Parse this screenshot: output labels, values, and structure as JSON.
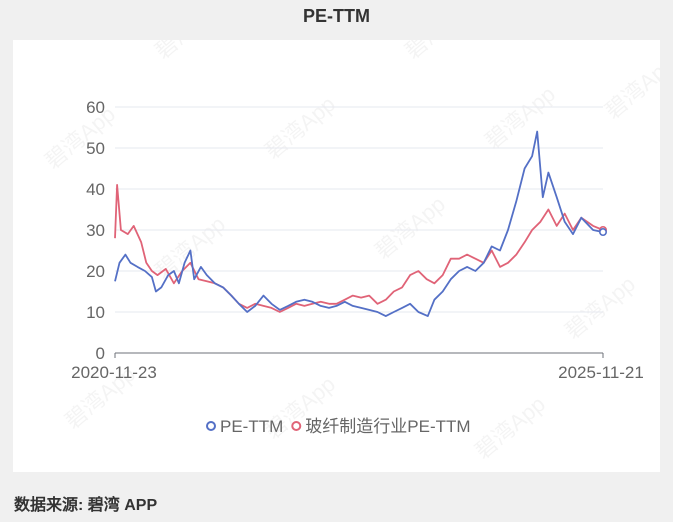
{
  "title": "PE-TTM",
  "source": "数据来源: 碧湾 APP",
  "watermark": "碧湾App",
  "colors": {
    "series1": "#5470c6",
    "series2": "#e06377",
    "grid": "#e6e8ef",
    "axis": "#6e7079",
    "text": "#666666"
  },
  "chart_data": {
    "type": "line",
    "x_range": [
      "2020-11-23",
      "2025-11-21"
    ],
    "x_tick_labels": [
      "2020-11-23",
      "2025-11-21"
    ],
    "y_ticks": [
      "0",
      "10",
      "20",
      "30",
      "40",
      "50",
      "60"
    ],
    "ylim": [
      0,
      60
    ],
    "grid": true,
    "legend_position": "bottom-center",
    "series": [
      {
        "name": "PE-TTM",
        "points": [
          [
            "2020-11-23",
            17.5
          ],
          [
            "2020-12-10",
            22
          ],
          [
            "2021-01-01",
            24
          ],
          [
            "2021-01-20",
            22
          ],
          [
            "2021-02-15",
            21
          ],
          [
            "2021-03-15",
            20
          ],
          [
            "2021-04-10",
            18.5
          ],
          [
            "2021-04-25",
            15
          ],
          [
            "2021-05-15",
            16
          ],
          [
            "2021-06-10",
            19
          ],
          [
            "2021-07-01",
            20
          ],
          [
            "2021-07-20",
            17
          ],
          [
            "2021-08-10",
            22
          ],
          [
            "2021-09-01",
            25
          ],
          [
            "2021-09-15",
            18
          ],
          [
            "2021-10-10",
            21
          ],
          [
            "2021-11-01",
            19
          ],
          [
            "2021-12-01",
            17
          ],
          [
            "2022-01-01",
            16
          ],
          [
            "2022-02-01",
            14
          ],
          [
            "2022-03-01",
            12
          ],
          [
            "2022-04-01",
            10
          ],
          [
            "2022-05-01",
            11.5
          ],
          [
            "2022-06-01",
            14
          ],
          [
            "2022-07-01",
            12
          ],
          [
            "2022-08-01",
            10.5
          ],
          [
            "2022-09-01",
            11.5
          ],
          [
            "2022-10-01",
            12.5
          ],
          [
            "2022-11-01",
            13
          ],
          [
            "2022-12-01",
            12.5
          ],
          [
            "2023-01-01",
            11.5
          ],
          [
            "2023-02-01",
            11
          ],
          [
            "2023-03-01",
            11.5
          ],
          [
            "2023-04-01",
            12.5
          ],
          [
            "2023-05-01",
            11.5
          ],
          [
            "2023-06-01",
            11
          ],
          [
            "2023-07-01",
            10.5
          ],
          [
            "2023-08-01",
            10
          ],
          [
            "2023-09-01",
            9
          ],
          [
            "2023-10-01",
            10
          ],
          [
            "2023-11-01",
            11
          ],
          [
            "2023-12-01",
            12
          ],
          [
            "2024-01-01",
            10
          ],
          [
            "2024-02-05",
            9
          ],
          [
            "2024-03-01",
            13
          ],
          [
            "2024-04-01",
            15
          ],
          [
            "2024-05-01",
            18
          ],
          [
            "2024-06-01",
            20
          ],
          [
            "2024-07-01",
            21
          ],
          [
            "2024-08-01",
            20
          ],
          [
            "2024-09-01",
            22
          ],
          [
            "2024-10-01",
            26
          ],
          [
            "2024-11-01",
            25
          ],
          [
            "2024-12-01",
            30
          ],
          [
            "2025-01-01",
            37
          ],
          [
            "2025-02-01",
            45
          ],
          [
            "2025-03-01",
            48
          ],
          [
            "2025-03-20",
            54
          ],
          [
            "2025-04-10",
            38
          ],
          [
            "2025-05-01",
            44
          ],
          [
            "2025-06-01",
            38
          ],
          [
            "2025-07-01",
            32
          ],
          [
            "2025-08-01",
            29
          ],
          [
            "2025-09-01",
            33
          ],
          [
            "2025-10-15",
            30
          ],
          [
            "2025-11-21",
            29.5
          ]
        ]
      },
      {
        "name": "玻纤制造行业PE-TTM",
        "points": [
          [
            "2020-11-23",
            28
          ],
          [
            "2020-12-01",
            41
          ],
          [
            "2020-12-15",
            30
          ],
          [
            "2021-01-10",
            29
          ],
          [
            "2021-02-01",
            31
          ],
          [
            "2021-03-01",
            27
          ],
          [
            "2021-03-20",
            22
          ],
          [
            "2021-04-10",
            20
          ],
          [
            "2021-05-01",
            19
          ],
          [
            "2021-06-01",
            20.5
          ],
          [
            "2021-07-01",
            17
          ],
          [
            "2021-08-01",
            20
          ],
          [
            "2021-09-01",
            22
          ],
          [
            "2021-10-01",
            18
          ],
          [
            "2021-11-01",
            17.5
          ],
          [
            "2021-12-01",
            17
          ],
          [
            "2022-01-01",
            16
          ],
          [
            "2022-02-01",
            14
          ],
          [
            "2022-03-01",
            12
          ],
          [
            "2022-04-01",
            11
          ],
          [
            "2022-05-01",
            12
          ],
          [
            "2022-06-01",
            11.5
          ],
          [
            "2022-07-01",
            11
          ],
          [
            "2022-08-01",
            10
          ],
          [
            "2022-09-01",
            11
          ],
          [
            "2022-10-01",
            12
          ],
          [
            "2022-11-01",
            11.5
          ],
          [
            "2022-12-01",
            12
          ],
          [
            "2023-01-01",
            12.5
          ],
          [
            "2023-02-01",
            12
          ],
          [
            "2023-03-01",
            12
          ],
          [
            "2023-04-01",
            13
          ],
          [
            "2023-05-01",
            14
          ],
          [
            "2023-06-01",
            13.5
          ],
          [
            "2023-07-01",
            14
          ],
          [
            "2023-08-01",
            12
          ],
          [
            "2023-09-01",
            13
          ],
          [
            "2023-10-01",
            15
          ],
          [
            "2023-11-01",
            16
          ],
          [
            "2023-12-01",
            19
          ],
          [
            "2024-01-01",
            20
          ],
          [
            "2024-02-01",
            18
          ],
          [
            "2024-03-01",
            17
          ],
          [
            "2024-04-01",
            19
          ],
          [
            "2024-05-01",
            23
          ],
          [
            "2024-06-01",
            23
          ],
          [
            "2024-07-01",
            24
          ],
          [
            "2024-08-01",
            23
          ],
          [
            "2024-09-01",
            22
          ],
          [
            "2024-10-01",
            25
          ],
          [
            "2024-11-01",
            21
          ],
          [
            "2024-12-01",
            22
          ],
          [
            "2025-01-01",
            24
          ],
          [
            "2025-02-01",
            27
          ],
          [
            "2025-03-01",
            30
          ],
          [
            "2025-04-01",
            32
          ],
          [
            "2025-05-01",
            35
          ],
          [
            "2025-06-01",
            31
          ],
          [
            "2025-07-01",
            34
          ],
          [
            "2025-08-01",
            30
          ],
          [
            "2025-09-01",
            33
          ],
          [
            "2025-10-15",
            31
          ],
          [
            "2025-11-21",
            30
          ]
        ]
      }
    ]
  }
}
